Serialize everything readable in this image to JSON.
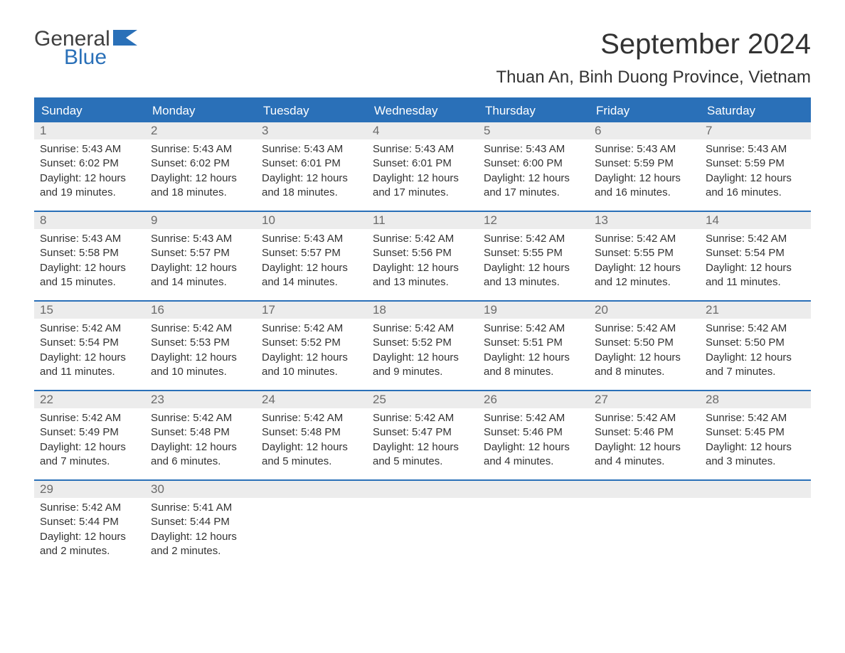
{
  "brand": {
    "word1": "General",
    "word2": "Blue",
    "flag_color": "#2a70b8"
  },
  "title": {
    "month": "September 2024",
    "location": "Thuan An, Binh Duong Province, Vietnam"
  },
  "style": {
    "header_bg": "#2a70b8",
    "header_text": "#ffffff",
    "daynum_bg": "#ececec",
    "daynum_text": "#6b6b6b",
    "body_text": "#333333",
    "page_bg": "#ffffff",
    "title_fontsize": 40,
    "location_fontsize": 24,
    "weekday_fontsize": 17,
    "body_fontsize": 15,
    "columns": 7
  },
  "weekdays": [
    "Sunday",
    "Monday",
    "Tuesday",
    "Wednesday",
    "Thursday",
    "Friday",
    "Saturday"
  ],
  "weeks": [
    [
      {
        "n": "1",
        "sunrise": "Sunrise: 5:43 AM",
        "sunset": "Sunset: 6:02 PM",
        "dl1": "Daylight: 12 hours",
        "dl2": "and 19 minutes."
      },
      {
        "n": "2",
        "sunrise": "Sunrise: 5:43 AM",
        "sunset": "Sunset: 6:02 PM",
        "dl1": "Daylight: 12 hours",
        "dl2": "and 18 minutes."
      },
      {
        "n": "3",
        "sunrise": "Sunrise: 5:43 AM",
        "sunset": "Sunset: 6:01 PM",
        "dl1": "Daylight: 12 hours",
        "dl2": "and 18 minutes."
      },
      {
        "n": "4",
        "sunrise": "Sunrise: 5:43 AM",
        "sunset": "Sunset: 6:01 PM",
        "dl1": "Daylight: 12 hours",
        "dl2": "and 17 minutes."
      },
      {
        "n": "5",
        "sunrise": "Sunrise: 5:43 AM",
        "sunset": "Sunset: 6:00 PM",
        "dl1": "Daylight: 12 hours",
        "dl2": "and 17 minutes."
      },
      {
        "n": "6",
        "sunrise": "Sunrise: 5:43 AM",
        "sunset": "Sunset: 5:59 PM",
        "dl1": "Daylight: 12 hours",
        "dl2": "and 16 minutes."
      },
      {
        "n": "7",
        "sunrise": "Sunrise: 5:43 AM",
        "sunset": "Sunset: 5:59 PM",
        "dl1": "Daylight: 12 hours",
        "dl2": "and 16 minutes."
      }
    ],
    [
      {
        "n": "8",
        "sunrise": "Sunrise: 5:43 AM",
        "sunset": "Sunset: 5:58 PM",
        "dl1": "Daylight: 12 hours",
        "dl2": "and 15 minutes."
      },
      {
        "n": "9",
        "sunrise": "Sunrise: 5:43 AM",
        "sunset": "Sunset: 5:57 PM",
        "dl1": "Daylight: 12 hours",
        "dl2": "and 14 minutes."
      },
      {
        "n": "10",
        "sunrise": "Sunrise: 5:43 AM",
        "sunset": "Sunset: 5:57 PM",
        "dl1": "Daylight: 12 hours",
        "dl2": "and 14 minutes."
      },
      {
        "n": "11",
        "sunrise": "Sunrise: 5:42 AM",
        "sunset": "Sunset: 5:56 PM",
        "dl1": "Daylight: 12 hours",
        "dl2": "and 13 minutes."
      },
      {
        "n": "12",
        "sunrise": "Sunrise: 5:42 AM",
        "sunset": "Sunset: 5:55 PM",
        "dl1": "Daylight: 12 hours",
        "dl2": "and 13 minutes."
      },
      {
        "n": "13",
        "sunrise": "Sunrise: 5:42 AM",
        "sunset": "Sunset: 5:55 PM",
        "dl1": "Daylight: 12 hours",
        "dl2": "and 12 minutes."
      },
      {
        "n": "14",
        "sunrise": "Sunrise: 5:42 AM",
        "sunset": "Sunset: 5:54 PM",
        "dl1": "Daylight: 12 hours",
        "dl2": "and 11 minutes."
      }
    ],
    [
      {
        "n": "15",
        "sunrise": "Sunrise: 5:42 AM",
        "sunset": "Sunset: 5:54 PM",
        "dl1": "Daylight: 12 hours",
        "dl2": "and 11 minutes."
      },
      {
        "n": "16",
        "sunrise": "Sunrise: 5:42 AM",
        "sunset": "Sunset: 5:53 PM",
        "dl1": "Daylight: 12 hours",
        "dl2": "and 10 minutes."
      },
      {
        "n": "17",
        "sunrise": "Sunrise: 5:42 AM",
        "sunset": "Sunset: 5:52 PM",
        "dl1": "Daylight: 12 hours",
        "dl2": "and 10 minutes."
      },
      {
        "n": "18",
        "sunrise": "Sunrise: 5:42 AM",
        "sunset": "Sunset: 5:52 PM",
        "dl1": "Daylight: 12 hours",
        "dl2": "and 9 minutes."
      },
      {
        "n": "19",
        "sunrise": "Sunrise: 5:42 AM",
        "sunset": "Sunset: 5:51 PM",
        "dl1": "Daylight: 12 hours",
        "dl2": "and 8 minutes."
      },
      {
        "n": "20",
        "sunrise": "Sunrise: 5:42 AM",
        "sunset": "Sunset: 5:50 PM",
        "dl1": "Daylight: 12 hours",
        "dl2": "and 8 minutes."
      },
      {
        "n": "21",
        "sunrise": "Sunrise: 5:42 AM",
        "sunset": "Sunset: 5:50 PM",
        "dl1": "Daylight: 12 hours",
        "dl2": "and 7 minutes."
      }
    ],
    [
      {
        "n": "22",
        "sunrise": "Sunrise: 5:42 AM",
        "sunset": "Sunset: 5:49 PM",
        "dl1": "Daylight: 12 hours",
        "dl2": "and 7 minutes."
      },
      {
        "n": "23",
        "sunrise": "Sunrise: 5:42 AM",
        "sunset": "Sunset: 5:48 PM",
        "dl1": "Daylight: 12 hours",
        "dl2": "and 6 minutes."
      },
      {
        "n": "24",
        "sunrise": "Sunrise: 5:42 AM",
        "sunset": "Sunset: 5:48 PM",
        "dl1": "Daylight: 12 hours",
        "dl2": "and 5 minutes."
      },
      {
        "n": "25",
        "sunrise": "Sunrise: 5:42 AM",
        "sunset": "Sunset: 5:47 PM",
        "dl1": "Daylight: 12 hours",
        "dl2": "and 5 minutes."
      },
      {
        "n": "26",
        "sunrise": "Sunrise: 5:42 AM",
        "sunset": "Sunset: 5:46 PM",
        "dl1": "Daylight: 12 hours",
        "dl2": "and 4 minutes."
      },
      {
        "n": "27",
        "sunrise": "Sunrise: 5:42 AM",
        "sunset": "Sunset: 5:46 PM",
        "dl1": "Daylight: 12 hours",
        "dl2": "and 4 minutes."
      },
      {
        "n": "28",
        "sunrise": "Sunrise: 5:42 AM",
        "sunset": "Sunset: 5:45 PM",
        "dl1": "Daylight: 12 hours",
        "dl2": "and 3 minutes."
      }
    ],
    [
      {
        "n": "29",
        "sunrise": "Sunrise: 5:42 AM",
        "sunset": "Sunset: 5:44 PM",
        "dl1": "Daylight: 12 hours",
        "dl2": "and 2 minutes."
      },
      {
        "n": "30",
        "sunrise": "Sunrise: 5:41 AM",
        "sunset": "Sunset: 5:44 PM",
        "dl1": "Daylight: 12 hours",
        "dl2": "and 2 minutes."
      },
      {
        "n": "",
        "sunrise": "",
        "sunset": "",
        "dl1": "",
        "dl2": "",
        "empty": true
      },
      {
        "n": "",
        "sunrise": "",
        "sunset": "",
        "dl1": "",
        "dl2": "",
        "empty": true
      },
      {
        "n": "",
        "sunrise": "",
        "sunset": "",
        "dl1": "",
        "dl2": "",
        "empty": true
      },
      {
        "n": "",
        "sunrise": "",
        "sunset": "",
        "dl1": "",
        "dl2": "",
        "empty": true
      },
      {
        "n": "",
        "sunrise": "",
        "sunset": "",
        "dl1": "",
        "dl2": "",
        "empty": true
      }
    ]
  ]
}
